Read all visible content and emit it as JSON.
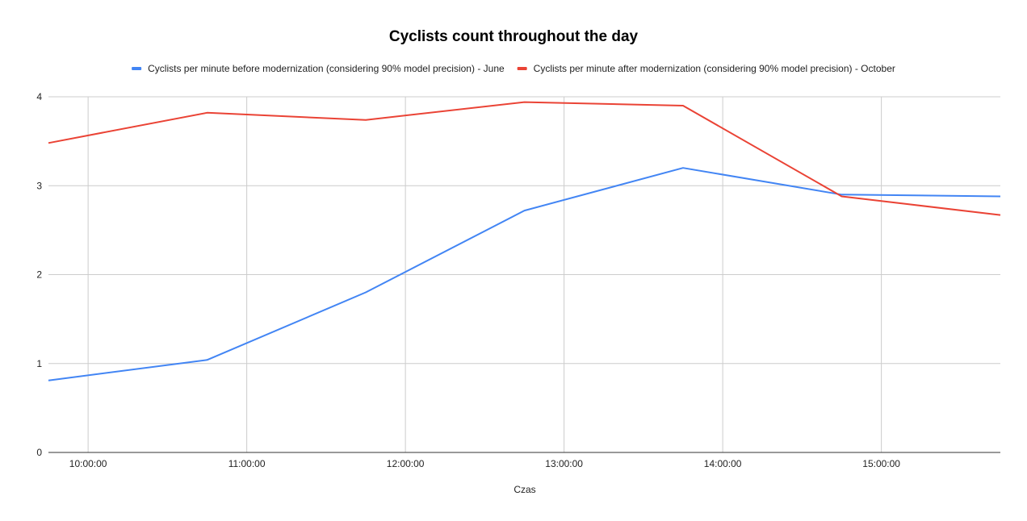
{
  "chart_data": {
    "type": "line",
    "title": "Cyclists count throughout the day",
    "xlabel": "Czas",
    "ylabel": "",
    "ylim": [
      0,
      4
    ],
    "yticks": [
      "0",
      "1",
      "2",
      "3",
      "4"
    ],
    "xticks": [
      "10:00:00",
      "11:00:00",
      "12:00:00",
      "13:00:00",
      "14:00:00",
      "15:00:00"
    ],
    "x": [
      "09:45",
      "10:45",
      "11:45",
      "12:45",
      "13:45",
      "14:45",
      "15:45"
    ],
    "grid": true,
    "legend_position": "top",
    "series": [
      {
        "name": "Cyclists per minute before modernization (considering 90% model precision) - June",
        "color": "#4285f4",
        "values": [
          0.81,
          1.04,
          1.8,
          2.72,
          3.2,
          2.9,
          2.88
        ]
      },
      {
        "name": "Cyclists per minute after modernization (considering 90% model precision) - October",
        "color": "#ea4335",
        "values": [
          3.48,
          3.82,
          3.74,
          3.94,
          3.9,
          2.88,
          2.67
        ]
      }
    ]
  }
}
